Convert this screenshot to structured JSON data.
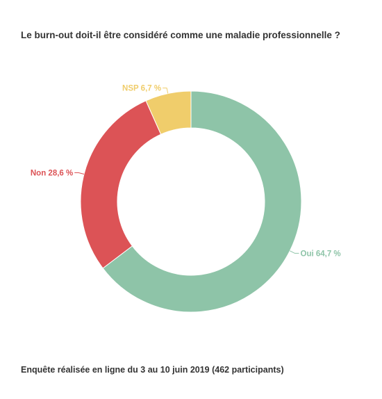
{
  "title": "Le burn-out doit-il être considéré comme une maladie professionnelle ?",
  "footer": "Enquête réalisée en ligne du 3 au 10 juin 2019 (462 participants)",
  "chart_data": {
    "type": "pie",
    "donut": true,
    "title": "Le burn-out doit-il être considéré comme une maladie professionnelle ?",
    "categories": [
      "Oui",
      "Non",
      "NSP"
    ],
    "values": [
      64.7,
      28.6,
      6.7
    ],
    "labels": [
      "Oui 64,7 %",
      "Non 28,6 %",
      "NSP 6,7 %"
    ],
    "colors": [
      "#8ec4a8",
      "#dc5356",
      "#f0cd6b"
    ],
    "label_colors": [
      "#8ec4a8",
      "#dc5356",
      "#f0cd6b"
    ],
    "legend": "none"
  }
}
